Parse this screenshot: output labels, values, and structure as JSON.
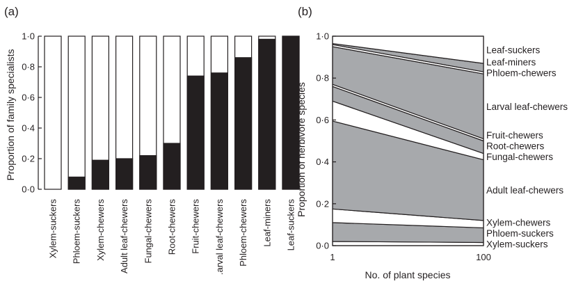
{
  "panels": {
    "a": {
      "label": "(a)"
    },
    "b": {
      "label": "(b)"
    }
  },
  "colors": {
    "black": "#231f20",
    "grey": "#a7a9ac",
    "white": "#ffffff"
  },
  "chart_data": [
    {
      "type": "bar",
      "stacked": true,
      "title": "",
      "xlabel": "",
      "ylabel": "Proportion of family specialists",
      "ylim": [
        0,
        1
      ],
      "yticks": [
        "0·0",
        "0·2",
        "0·4",
        "0·6",
        "0·8",
        "1·0"
      ],
      "yticks_values": [
        0,
        0.2,
        0.4,
        0.6,
        0.8,
        1.0
      ],
      "categories": [
        "Xylem-suckers",
        "Phloem-suckers",
        "Xylem-chewers",
        "Adult leaf-chewers",
        "Fungal-chewers",
        "Root-chewers",
        "Fruit-chewers",
        ".arval leaf-chewers",
        "Phloem-chewers",
        "Leaf-miners",
        "Leaf-suckers"
      ],
      "values": [
        0.0,
        0.08,
        0.19,
        0.2,
        0.22,
        0.3,
        0.74,
        0.76,
        0.86,
        0.98,
        1.0
      ],
      "grid": false,
      "legend": "none"
    },
    {
      "type": "area",
      "stacked": true,
      "title": "",
      "xlabel": "No. of plant species",
      "ylabel": "Proportion of herbivore species",
      "x": [
        1,
        100
      ],
      "xticks": [
        "1",
        "100"
      ],
      "ylim": [
        0,
        1
      ],
      "yticks": [
        "0·0",
        "0·2",
        "0·4",
        "0·6",
        "0·8",
        "1·0"
      ],
      "yticks_values": [
        0,
        0.2,
        0.4,
        0.6,
        0.8,
        1.0
      ],
      "grid": false,
      "legend": "right",
      "series": [
        {
          "name": "Xylem-suckers",
          "values": [
            0.02,
            0.015
          ],
          "color": "white"
        },
        {
          "name": "Phloem-suckers",
          "values": [
            0.09,
            0.07
          ],
          "color": "grey"
        },
        {
          "name": "Xylem-chewers",
          "values": [
            0.065,
            0.035
          ],
          "color": "white"
        },
        {
          "name": "Adult leaf-chewers",
          "values": [
            0.42,
            0.29
          ],
          "color": "grey"
        },
        {
          "name": "Fungal-chewers",
          "values": [
            0.095,
            0.03
          ],
          "color": "white"
        },
        {
          "name": "Root-chewers",
          "values": [
            0.07,
            0.06
          ],
          "color": "grey"
        },
        {
          "name": "Fruit-chewers",
          "values": [
            0.01,
            0.01
          ],
          "color": "white"
        },
        {
          "name": "Larval leaf-chewers",
          "values": [
            0.18,
            0.31
          ],
          "color": "grey"
        },
        {
          "name": "Phloem-chewers",
          "values": [
            0.01,
            0.01
          ],
          "color": "white"
        },
        {
          "name": "Leaf-miners",
          "values": [
            0.005,
            0.04
          ],
          "color": "grey"
        },
        {
          "name": "Leaf-suckers",
          "values": [
            0.035,
            0.13
          ],
          "color": "white"
        }
      ]
    }
  ]
}
